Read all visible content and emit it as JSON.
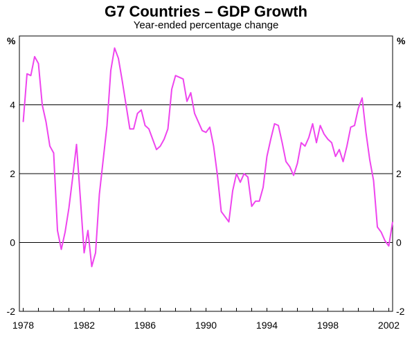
{
  "chart_data": {
    "type": "line",
    "title": "G7 Countries – GDP Growth",
    "subtitle": "Year-ended percentage change",
    "unit_left": "%",
    "unit_right": "%",
    "xlabel": "",
    "ylabel": "",
    "xlim": [
      1977.75,
      2002.25
    ],
    "ylim": [
      -2,
      6
    ],
    "x_ticks": [
      1978,
      1982,
      1986,
      1990,
      1994,
      1998,
      2002
    ],
    "y_ticks": [
      -2,
      0,
      2,
      4
    ],
    "gridlines_y": [
      0,
      2,
      4
    ],
    "line_color": "#ee44ee",
    "series": [
      {
        "values": [
          [
            1978.0,
            3.5
          ],
          [
            1978.25,
            4.9
          ],
          [
            1978.5,
            4.85
          ],
          [
            1978.75,
            5.4
          ],
          [
            1979.0,
            5.2
          ],
          [
            1979.25,
            4.0
          ],
          [
            1979.5,
            3.5
          ],
          [
            1979.75,
            2.8
          ],
          [
            1980.0,
            2.6
          ],
          [
            1980.25,
            0.35
          ],
          [
            1980.5,
            -0.2
          ],
          [
            1980.75,
            0.3
          ],
          [
            1981.0,
            1.0
          ],
          [
            1981.25,
            1.9
          ],
          [
            1981.5,
            2.85
          ],
          [
            1981.75,
            1.3
          ],
          [
            1982.0,
            -0.3
          ],
          [
            1982.25,
            0.35
          ],
          [
            1982.5,
            -0.7
          ],
          [
            1982.75,
            -0.3
          ],
          [
            1983.0,
            1.4
          ],
          [
            1983.25,
            2.4
          ],
          [
            1983.5,
            3.4
          ],
          [
            1983.75,
            5.0
          ],
          [
            1984.0,
            5.65
          ],
          [
            1984.25,
            5.35
          ],
          [
            1984.5,
            4.7
          ],
          [
            1984.75,
            4.0
          ],
          [
            1985.0,
            3.3
          ],
          [
            1985.25,
            3.3
          ],
          [
            1985.5,
            3.75
          ],
          [
            1985.75,
            3.85
          ],
          [
            1986.0,
            3.4
          ],
          [
            1986.25,
            3.3
          ],
          [
            1986.5,
            3.0
          ],
          [
            1986.75,
            2.7
          ],
          [
            1987.0,
            2.8
          ],
          [
            1987.25,
            3.0
          ],
          [
            1987.5,
            3.3
          ],
          [
            1987.75,
            4.45
          ],
          [
            1988.0,
            4.85
          ],
          [
            1988.25,
            4.8
          ],
          [
            1988.5,
            4.75
          ],
          [
            1988.75,
            4.1
          ],
          [
            1989.0,
            4.35
          ],
          [
            1989.25,
            3.75
          ],
          [
            1989.5,
            3.5
          ],
          [
            1989.75,
            3.25
          ],
          [
            1990.0,
            3.2
          ],
          [
            1990.25,
            3.35
          ],
          [
            1990.5,
            2.8
          ],
          [
            1990.75,
            1.95
          ],
          [
            1991.0,
            0.9
          ],
          [
            1991.25,
            0.75
          ],
          [
            1991.5,
            0.6
          ],
          [
            1991.75,
            1.5
          ],
          [
            1992.0,
            2.0
          ],
          [
            1992.25,
            1.75
          ],
          [
            1992.5,
            2.0
          ],
          [
            1992.75,
            1.9
          ],
          [
            1993.0,
            1.05
          ],
          [
            1993.25,
            1.2
          ],
          [
            1993.5,
            1.2
          ],
          [
            1993.75,
            1.6
          ],
          [
            1994.0,
            2.5
          ],
          [
            1994.25,
            3.0
          ],
          [
            1994.5,
            3.45
          ],
          [
            1994.75,
            3.4
          ],
          [
            1995.0,
            2.9
          ],
          [
            1995.25,
            2.35
          ],
          [
            1995.5,
            2.2
          ],
          [
            1995.75,
            1.95
          ],
          [
            1996.0,
            2.3
          ],
          [
            1996.25,
            2.9
          ],
          [
            1996.5,
            2.8
          ],
          [
            1996.75,
            3.05
          ],
          [
            1997.0,
            3.45
          ],
          [
            1997.25,
            2.9
          ],
          [
            1997.5,
            3.4
          ],
          [
            1997.75,
            3.15
          ],
          [
            1998.0,
            3.0
          ],
          [
            1998.25,
            2.9
          ],
          [
            1998.5,
            2.5
          ],
          [
            1998.75,
            2.7
          ],
          [
            1999.0,
            2.35
          ],
          [
            1999.25,
            2.8
          ],
          [
            1999.5,
            3.35
          ],
          [
            1999.75,
            3.4
          ],
          [
            2000.0,
            3.9
          ],
          [
            2000.25,
            4.2
          ],
          [
            2000.5,
            3.2
          ],
          [
            2000.75,
            2.4
          ],
          [
            2001.0,
            1.8
          ],
          [
            2001.25,
            0.45
          ],
          [
            2001.5,
            0.3
          ],
          [
            2001.75,
            0.05
          ],
          [
            2002.0,
            -0.1
          ],
          [
            2002.25,
            0.6
          ]
        ]
      }
    ]
  }
}
